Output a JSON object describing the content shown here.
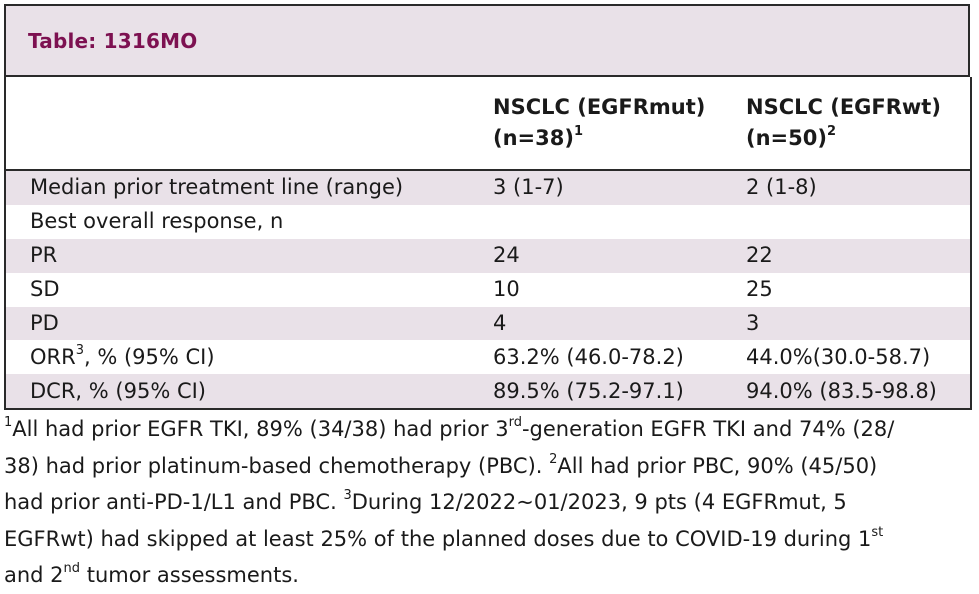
{
  "title": "Table: 1316MO",
  "columns": {
    "col1_line1": "NSCLC (EGFRmut)",
    "col1_line2": "(n=38)",
    "col1_sup": "1",
    "col2_line1": "NSCLC (EGFRwt)",
    "col2_line2": "(n=50)",
    "col2_sup": "2"
  },
  "rows": [
    {
      "label": "Median prior treatment line (range)",
      "label_sup": "",
      "label_rest": "",
      "mut": "3 (1-7)",
      "wt": "2 (1-8)"
    },
    {
      "label": "Best overall response, n",
      "label_sup": "",
      "label_rest": "",
      "mut": "",
      "wt": ""
    },
    {
      "label": "PR",
      "label_sup": "",
      "label_rest": "",
      "mut": "24",
      "wt": "22"
    },
    {
      "label": "SD",
      "label_sup": "",
      "label_rest": "",
      "mut": "10",
      "wt": "25"
    },
    {
      "label": "PD",
      "label_sup": "",
      "label_rest": "",
      "mut": "4",
      "wt": "3"
    },
    {
      "label": "ORR",
      "label_sup": "3",
      "label_rest": ", % (95% CI)",
      "mut": "63.2% (46.0-78.2)",
      "wt": "44.0%(30.0-58.7)"
    },
    {
      "label": "DCR, % (95% CI)",
      "label_sup": "",
      "label_rest": "",
      "mut": "89.5% (75.2-97.1)",
      "wt": "94.0% (83.5-98.8)"
    }
  ],
  "footnote": {
    "sup1": "1",
    "t1": "All had prior EGFR TKI, 89% (34/38) had prior 3",
    "sup_rd": "rd",
    "t2": "-generation EGFR TKI and 74% (28/",
    "t3": "38) had prior platinum-based chemotherapy (PBC). ",
    "sup2": "2",
    "t4": "All had prior PBC, 90% (45/50)",
    "t5": "had prior anti-PD-1/L1 and PBC. ",
    "sup3": "3",
    "t6": "During 12/2022∼01/2023, 9 pts (4 EGFRmut, 5",
    "t7": "EGFRwt) had skipped at least 25% of the planned doses due to COVID-19 during 1",
    "sup_st": "st",
    "t8": "and 2",
    "sup_nd": "nd",
    "t9": " tumor assessments."
  },
  "colors": {
    "accent": "#7d1151",
    "shade": "#e9e1e8",
    "border": "#2a2a2a"
  }
}
